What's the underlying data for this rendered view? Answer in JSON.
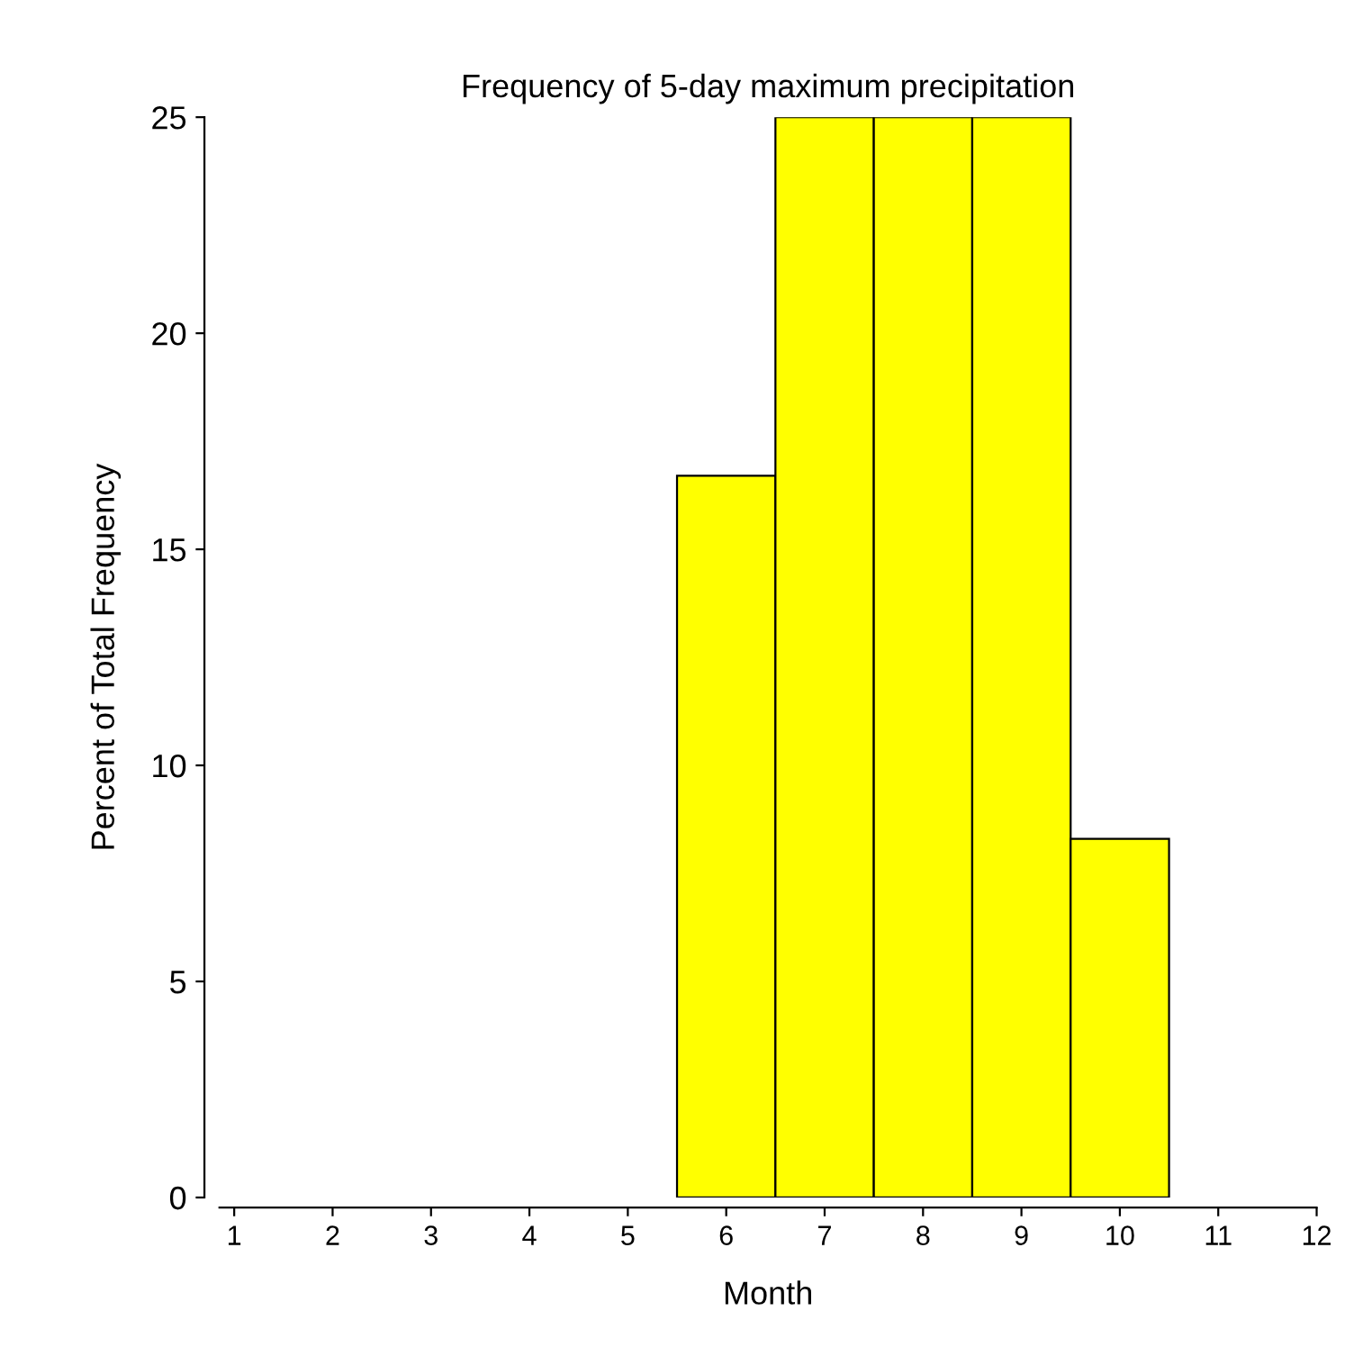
{
  "chart_data": {
    "type": "histogram",
    "title": "Frequency of 5-day maximum precipitation",
    "xlabel": "Month",
    "ylabel": "Percent of Total Frequency",
    "bins": [
      5.5,
      6.5,
      7.5,
      8.5,
      9.5,
      10.5
    ],
    "values": [
      16.7,
      25,
      25,
      25,
      8.3
    ],
    "color": "#ffff00",
    "xlim": [
      0.85,
      12
    ],
    "xticks": [
      1,
      2,
      3,
      4,
      5,
      6,
      7,
      8,
      9,
      10,
      11,
      12
    ],
    "ylim": [
      0,
      25
    ],
    "yticks": [
      0,
      5,
      10,
      15,
      20,
      25
    ],
    "grid": false
  }
}
